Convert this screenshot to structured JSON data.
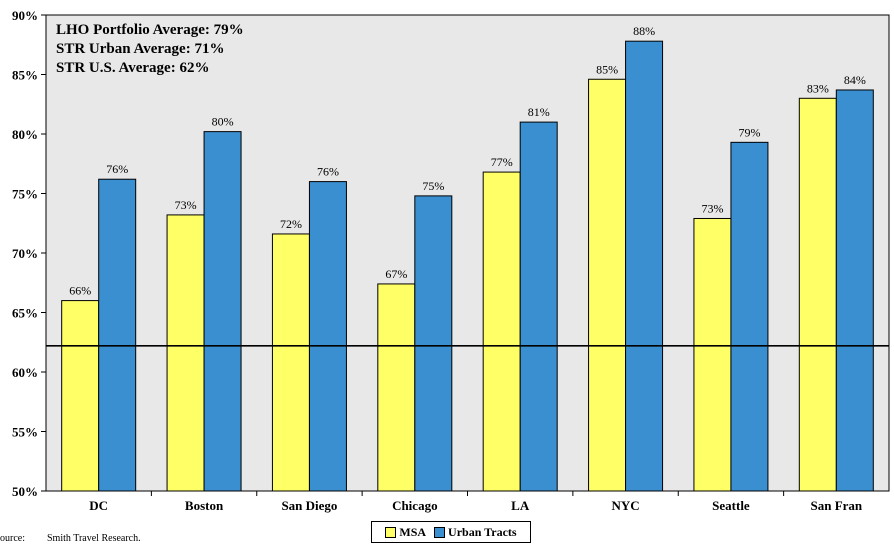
{
  "chart_data": {
    "type": "bar",
    "categories": [
      "DC",
      "Boston",
      "San Diego",
      "Chicago",
      "LA",
      "NYC",
      "Seattle",
      "San Fran"
    ],
    "series": [
      {
        "name": "MSA",
        "values": [
          66,
          73.2,
          71.6,
          67.4,
          76.8,
          84.6,
          72.9,
          83.0
        ],
        "labels": [
          "66%",
          "73%",
          "72%",
          "67%",
          "77%",
          "85%",
          "73%",
          "83%"
        ],
        "color": "#ffff66"
      },
      {
        "name": "Urban Tracts",
        "values": [
          76.2,
          80.2,
          76.0,
          74.8,
          81.0,
          87.8,
          79.3,
          83.7
        ],
        "labels": [
          "76%",
          "80%",
          "76%",
          "75%",
          "81%",
          "88%",
          "79%",
          "84%"
        ],
        "color": "#3a8fd0"
      }
    ],
    "ylim": [
      50,
      90
    ],
    "yticks": [
      "50%",
      "55%",
      "60%",
      "65%",
      "70%",
      "75%",
      "80%",
      "85%",
      "90%"
    ],
    "reference_line": 62.2,
    "grid": false,
    "background": "#e8e8e8",
    "legend_position": "bottom-center"
  },
  "annotations": [
    {
      "text": "LHO Portfolio Average: 79%",
      "color": "#3a9ad9"
    },
    {
      "text": "STR Urban Average: 71%",
      "color": "#1a1a8c"
    },
    {
      "text": "STR U.S. Average: 62%",
      "color": "#000000"
    }
  ],
  "legend": {
    "msa": "MSA",
    "urban": "Urban Tracts"
  },
  "source": {
    "label": "ource:",
    "text": "Smith Travel Research."
  }
}
